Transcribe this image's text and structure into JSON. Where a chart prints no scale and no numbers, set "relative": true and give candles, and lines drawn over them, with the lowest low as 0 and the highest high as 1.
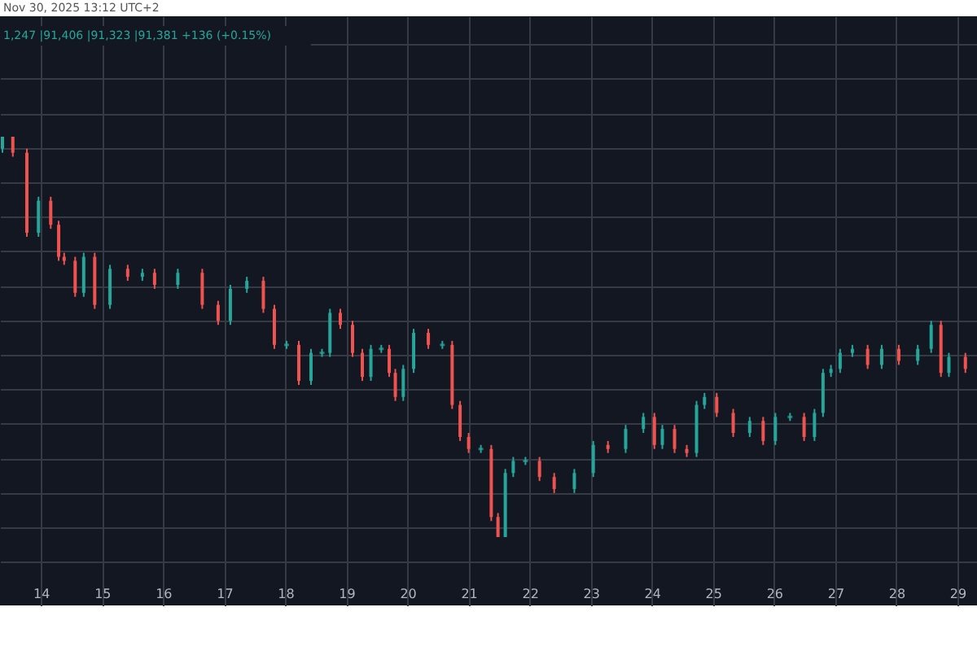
{
  "chart_data": {
    "type": "candlestick",
    "relative": true,
    "annotations": [
      "Nov 30, 2025 13:12 UTC+2",
      "1,247 |91,406 |91,323 |91,381 +136 (+0.15%)"
    ],
    "x": [
      13.37,
      13.54,
      13.77,
      13.96,
      14.16,
      14.29,
      14.38,
      14.56,
      14.7,
      14.88,
      15.13,
      15.42,
      15.66,
      15.86,
      16.24,
      16.64,
      16.9,
      17.1,
      17.37,
      17.64,
      17.82,
      18.02,
      18.22,
      18.42,
      18.6,
      18.73,
      18.9,
      19.1,
      19.26,
      19.4,
      19.57,
      19.7,
      19.8,
      19.93,
      20.1,
      20.34,
      20.57,
      20.73,
      20.86,
      21.0,
      21.2,
      21.37,
      21.48,
      21.6,
      21.73,
      21.93,
      22.16,
      22.4,
      22.73,
      23.04,
      23.28,
      23.57,
      23.86,
      24.04,
      24.17,
      24.37,
      24.57,
      24.73,
      24.86,
      25.06,
      25.33,
      25.6,
      25.82,
      26.02,
      26.26,
      26.49,
      26.66,
      26.8,
      26.93,
      27.08,
      27.28,
      27.53,
      27.76,
      28.04,
      28.35,
      28.57,
      28.73,
      28.86,
      29.13
    ],
    "ohlc": [
      [
        0.97,
        1,
        0.96,
        1
      ],
      [
        1,
        1,
        0.95,
        0.96
      ],
      [
        0.96,
        0.97,
        0.75,
        0.76
      ],
      [
        0.76,
        0.85,
        0.75,
        0.84
      ],
      [
        0.84,
        0.85,
        0.77,
        0.78
      ],
      [
        0.78,
        0.79,
        0.69,
        0.7
      ],
      [
        0.7,
        0.71,
        0.68,
        0.69
      ],
      [
        0.69,
        0.7,
        0.6,
        0.61
      ],
      [
        0.61,
        0.71,
        0.6,
        0.7
      ],
      [
        0.7,
        0.71,
        0.57,
        0.58
      ],
      [
        0.58,
        0.68,
        0.57,
        0.67
      ],
      [
        0.67,
        0.68,
        0.64,
        0.65
      ],
      [
        0.65,
        0.67,
        0.64,
        0.66
      ],
      [
        0.66,
        0.67,
        0.62,
        0.63
      ],
      [
        0.63,
        0.67,
        0.62,
        0.66
      ],
      [
        0.66,
        0.67,
        0.57,
        0.58
      ],
      [
        0.58,
        0.59,
        0.53,
        0.54
      ],
      [
        0.54,
        0.63,
        0.53,
        0.62
      ],
      [
        0.62,
        0.65,
        0.61,
        0.64
      ],
      [
        0.64,
        0.65,
        0.56,
        0.57
      ],
      [
        0.57,
        0.58,
        0.47,
        0.48
      ],
      [
        0.48,
        0.49,
        0.47,
        0.48
      ],
      [
        0.48,
        0.49,
        0.38,
        0.39
      ],
      [
        0.39,
        0.47,
        0.38,
        0.46
      ],
      [
        0.46,
        0.47,
        0.45,
        0.46
      ],
      [
        0.46,
        0.57,
        0.45,
        0.56
      ],
      [
        0.56,
        0.57,
        0.52,
        0.53
      ],
      [
        0.53,
        0.54,
        0.45,
        0.46
      ],
      [
        0.46,
        0.47,
        0.39,
        0.4
      ],
      [
        0.4,
        0.48,
        0.39,
        0.47
      ],
      [
        0.47,
        0.48,
        0.46,
        0.47
      ],
      [
        0.47,
        0.48,
        0.4,
        0.41
      ],
      [
        0.41,
        0.42,
        0.34,
        0.35
      ],
      [
        0.35,
        0.43,
        0.34,
        0.42
      ],
      [
        0.42,
        0.52,
        0.41,
        0.51
      ],
      [
        0.51,
        0.52,
        0.47,
        0.48
      ],
      [
        0.48,
        0.49,
        0.47,
        0.48
      ],
      [
        0.48,
        0.49,
        0.32,
        0.33
      ],
      [
        0.33,
        0.34,
        0.24,
        0.25
      ],
      [
        0.25,
        0.26,
        0.21,
        0.22
      ],
      [
        0.22,
        0.23,
        0.21,
        0.22
      ],
      [
        0.22,
        0.23,
        0.04,
        0.05
      ],
      [
        0.05,
        0.06,
        0,
        0
      ],
      [
        0,
        0.17,
        0,
        0.16
      ],
      [
        0.16,
        0.2,
        0.15,
        0.19
      ],
      [
        0.19,
        0.2,
        0.18,
        0.19
      ],
      [
        0.19,
        0.2,
        0.14,
        0.15
      ],
      [
        0.15,
        0.16,
        0.11,
        0.12
      ],
      [
        0.12,
        0.17,
        0.11,
        0.16
      ],
      [
        0.16,
        0.24,
        0.15,
        0.23
      ],
      [
        0.23,
        0.24,
        0.21,
        0.22
      ],
      [
        0.22,
        0.28,
        0.21,
        0.27
      ],
      [
        0.27,
        0.31,
        0.26,
        0.3
      ],
      [
        0.3,
        0.31,
        0.22,
        0.23
      ],
      [
        0.23,
        0.28,
        0.22,
        0.27
      ],
      [
        0.27,
        0.28,
        0.21,
        0.22
      ],
      [
        0.22,
        0.23,
        0.2,
        0.21
      ],
      [
        0.21,
        0.34,
        0.2,
        0.33
      ],
      [
        0.33,
        0.36,
        0.32,
        0.35
      ],
      [
        0.35,
        0.36,
        0.3,
        0.31
      ],
      [
        0.31,
        0.32,
        0.25,
        0.26
      ],
      [
        0.26,
        0.3,
        0.25,
        0.29
      ],
      [
        0.29,
        0.3,
        0.23,
        0.24
      ],
      [
        0.24,
        0.31,
        0.23,
        0.3
      ],
      [
        0.3,
        0.31,
        0.29,
        0.3
      ],
      [
        0.3,
        0.31,
        0.24,
        0.25
      ],
      [
        0.25,
        0.32,
        0.24,
        0.31
      ],
      [
        0.31,
        0.42,
        0.3,
        0.41
      ],
      [
        0.41,
        0.43,
        0.4,
        0.42
      ],
      [
        0.42,
        0.47,
        0.41,
        0.46
      ],
      [
        0.46,
        0.48,
        0.45,
        0.47
      ],
      [
        0.47,
        0.48,
        0.42,
        0.43
      ],
      [
        0.43,
        0.48,
        0.42,
        0.47
      ],
      [
        0.47,
        0.48,
        0.43,
        0.44
      ],
      [
        0.44,
        0.48,
        0.43,
        0.47
      ],
      [
        0.47,
        0.54,
        0.46,
        0.53
      ],
      [
        0.53,
        0.54,
        0.4,
        0.41
      ],
      [
        0.41,
        0.46,
        0.4,
        0.45
      ],
      [
        0.45,
        0.46,
        0.41,
        0.42
      ]
    ],
    "colors": [
      "#26a69a",
      "#ef5350",
      "#ef5350",
      "#26a69a",
      "#ef5350",
      "#ef5350",
      "#ef5350",
      "#ef5350",
      "#26a69a",
      "#ef5350",
      "#26a69a",
      "#ef5350",
      "#26a69a",
      "#ef5350",
      "#26a69a",
      "#ef5350",
      "#ef5350",
      "#26a69a",
      "#26a69a",
      "#ef5350",
      "#ef5350",
      "#26a69a",
      "#ef5350",
      "#26a69a",
      "#26a69a",
      "#26a69a",
      "#ef5350",
      "#ef5350",
      "#ef5350",
      "#26a69a",
      "#26a69a",
      "#ef5350",
      "#ef5350",
      "#26a69a",
      "#26a69a",
      "#ef5350",
      "#26a69a",
      "#ef5350",
      "#ef5350",
      "#ef5350",
      "#26a69a",
      "#ef5350",
      "#ef5350",
      "#26a69a",
      "#26a69a",
      "#26a69a",
      "#ef5350",
      "#ef5350",
      "#26a69a",
      "#26a69a",
      "#ef5350",
      "#26a69a",
      "#26a69a",
      "#ef5350",
      "#26a69a",
      "#ef5350",
      "#ef5350",
      "#26a69a",
      "#26a69a",
      "#ef5350",
      "#ef5350",
      "#26a69a",
      "#ef5350",
      "#26a69a",
      "#26a69a",
      "#ef5350",
      "#26a69a",
      "#26a69a",
      "#26a69a",
      "#26a69a",
      "#26a69a",
      "#ef5350",
      "#26a69a",
      "#ef5350",
      "#26a69a",
      "#26a69a",
      "#ef5350",
      "#26a69a",
      "#ef5350"
    ],
    "xlim": [
      13.33,
      29.32
    ],
    "xticks": [
      14,
      15,
      16,
      17,
      18,
      19,
      20,
      21,
      22,
      23,
      24,
      25,
      26,
      27,
      28,
      29
    ],
    "grid": true
  }
}
